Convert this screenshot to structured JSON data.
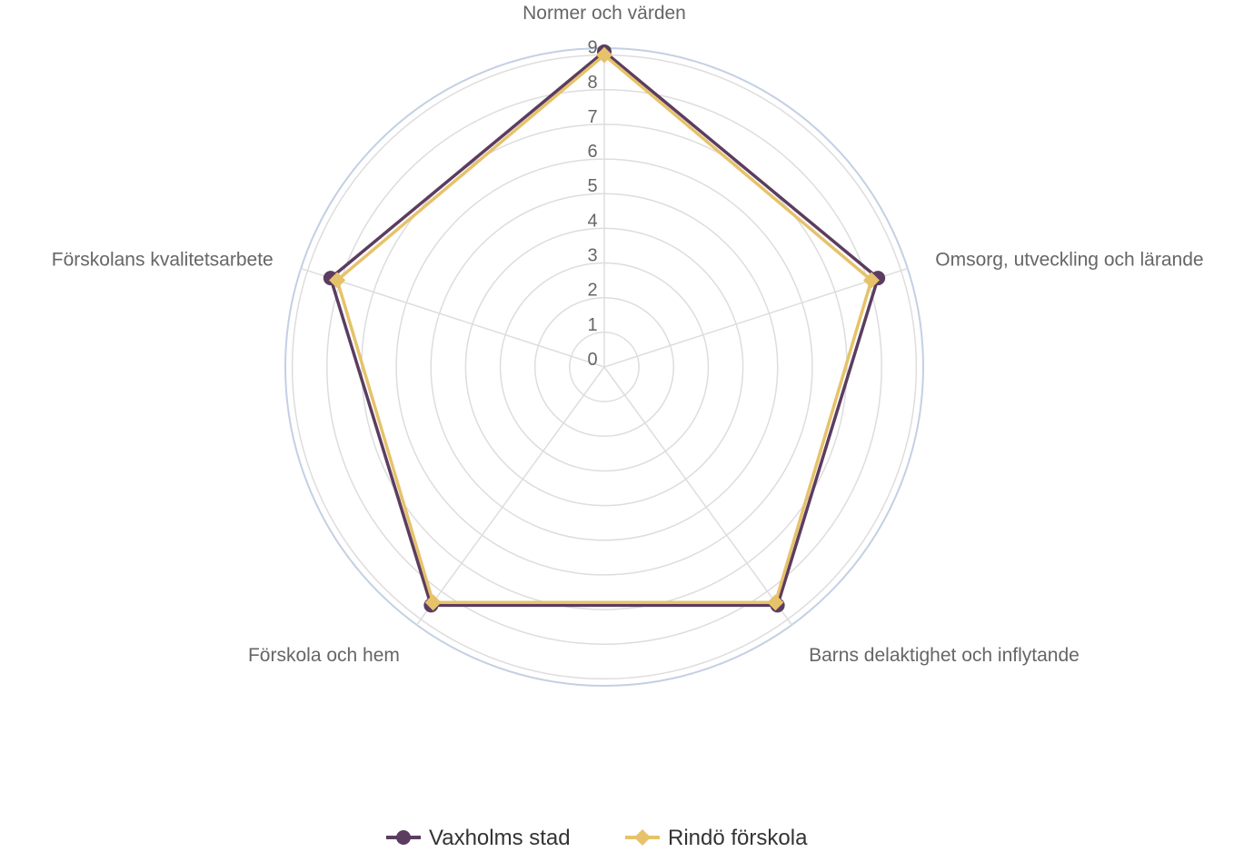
{
  "chart_data": {
    "type": "radar",
    "categories": [
      "Normer och värden",
      "Omsorg, utveckling och lärande",
      "Barns delaktighet och inflytande",
      "Förskola och hem",
      "Förskolans kvalitetsarbete"
    ],
    "rticks": [
      "0",
      "1",
      "2",
      "3",
      "4",
      "5",
      "6",
      "7",
      "8",
      "9"
    ],
    "rlim": [
      0,
      9.2
    ],
    "grid": true,
    "legend_position": "bottom",
    "series": [
      {
        "name": "Vaxholms stad",
        "values": [
          9.1,
          8.3,
          8.5,
          8.5,
          8.3
        ],
        "color": "#5b3d60",
        "marker": "circle"
      },
      {
        "name": "Rindö förskola",
        "values": [
          9.0,
          8.1,
          8.4,
          8.4,
          8.1
        ],
        "color": "#e6c26a",
        "marker": "diamond"
      }
    ],
    "colors": {
      "grid": "#dddddd",
      "outer_ring": "#c3d0e4",
      "text": "#666666"
    }
  }
}
